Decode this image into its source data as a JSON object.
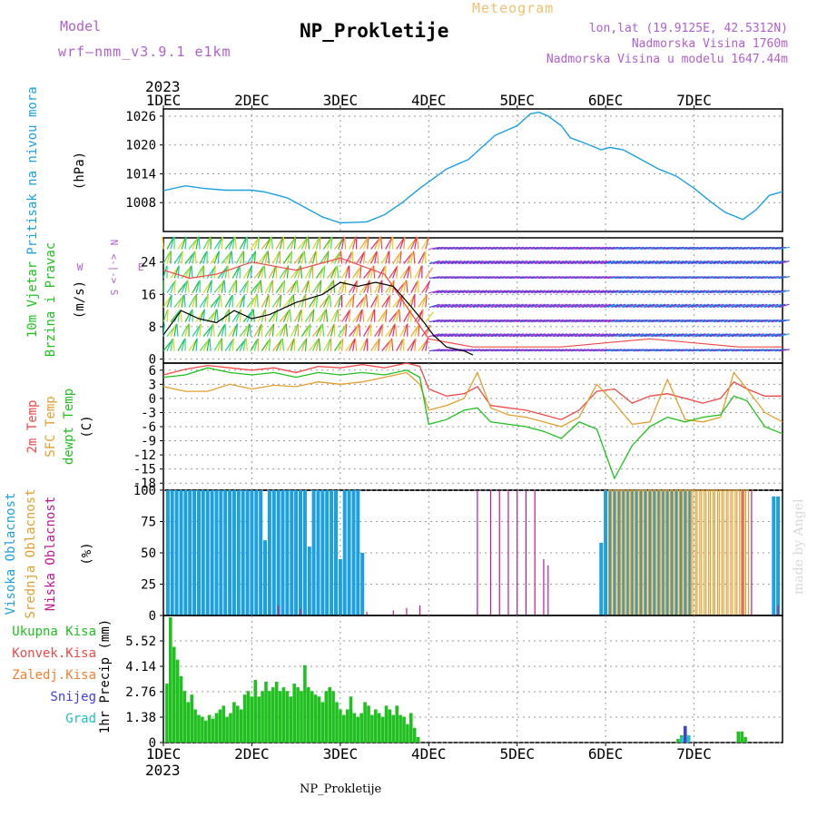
{
  "header": {
    "model_label": "Model",
    "model_name": "wrf—nmm_v3.9.1 e1km",
    "meteogram_label": "Meteogram",
    "station": "NP_Prokletije",
    "lonlat": "lon,lat (19.9125E, 42.5312N)",
    "altitude": "Nadmorska Visina 1760m",
    "model_altitude": "Nadmorska Visina u modelu 1647.44m"
  },
  "footer": {
    "station": "NP_Prokletije",
    "credit": "made by Angel"
  },
  "colors": {
    "pressure": "#1ca0e0",
    "temp2m": "#f04848",
    "sfc": "#e0a030",
    "dewpt": "#20c020",
    "high_cloud": "#1ca0e0",
    "mid_cloud": "#e0a030",
    "low_cloud": "#c01890",
    "precip_total": "#20c020",
    "precip_conv": "#f04848",
    "precip_frz": "#f08030",
    "snow": "#4040e0",
    "hail": "#20c0c0",
    "wind_label": "#20c020"
  },
  "chart_data": [
    {
      "type": "line",
      "panel": "pressure",
      "year": "2023",
      "x_ticks": [
        "1DEC",
        "2DEC",
        "3DEC",
        "4DEC",
        "5DEC",
        "6DEC",
        "7DEC"
      ],
      "ylabel_title": "Pritisak na nivou mora",
      "ylabel_unit": "(hPa)",
      "y_ticks": [
        1008,
        1014,
        1020,
        1026
      ],
      "ylim": [
        1002,
        1027.5
      ],
      "series": [
        {
          "x": [
            0,
            0.25,
            0.45,
            0.7,
            0.9,
            1.0,
            1.15,
            1.4,
            1.6,
            1.8,
            2.0,
            2.3,
            2.5,
            2.7,
            2.9,
            3.05,
            3.2,
            3.45,
            3.6,
            3.75,
            4.0,
            4.15,
            4.25,
            4.35,
            4.5,
            4.6,
            4.75,
            4.95,
            5.05,
            5.2,
            5.4,
            5.6,
            5.8,
            6.0,
            6.2,
            6.35,
            6.55,
            6.7,
            6.85,
            7.0
          ],
          "values": [
            1010.5,
            1011.5,
            1011.0,
            1010.6,
            1010.6,
            1010.6,
            1010.2,
            1009.0,
            1007.0,
            1005.0,
            1003.8,
            1004.0,
            1005.5,
            1008.0,
            1011.0,
            1013.0,
            1015.0,
            1017.0,
            1019.5,
            1022.0,
            1024.0,
            1026.5,
            1026.8,
            1026.0,
            1024.0,
            1021.5,
            1020.5,
            1019.0,
            1019.5,
            1019.0,
            1017.0,
            1015.0,
            1013.5,
            1011.0,
            1008.0,
            1006.0,
            1004.5,
            1006.5,
            1009.5,
            1010.3
          ]
        }
      ]
    },
    {
      "type": "line",
      "panel": "wind",
      "x_ticks": [
        "1DEC",
        "2DEC",
        "3DEC",
        "4DEC",
        "5DEC",
        "6DEC",
        "7DEC"
      ],
      "ylabel_title": "10m Vjetar",
      "ylabel_title2": "Brzina i Pravac",
      "ylabel_unit": "(m/s)",
      "compass": {
        "north": "N",
        "south": "S",
        "east": "E",
        "west": "W",
        "arrows": "<-|->"
      },
      "y_ticks": [
        0,
        8,
        16,
        24
      ],
      "ylim": [
        -1,
        30
      ],
      "series": [
        {
          "x": [
            0,
            0.2,
            0.4,
            0.6,
            0.8,
            1.0,
            1.2,
            1.5,
            1.8,
            2.0,
            2.2,
            2.4,
            2.6,
            2.8,
            2.95,
            3.05,
            3.2,
            3.4,
            3.5
          ],
          "values": [
            6,
            12,
            10,
            9,
            12,
            10,
            11,
            14,
            16,
            19,
            18,
            19,
            18,
            13,
            9,
            6,
            3,
            2,
            1
          ],
          "role": "speed"
        },
        {
          "x": [
            0,
            0.3,
            0.6,
            1.0,
            1.5,
            2.0,
            2.5,
            3.0,
            3.5,
            4.0,
            4.5,
            5.0,
            5.5,
            6.0,
            6.5,
            7.0
          ],
          "values": [
            22,
            20,
            21,
            24,
            22,
            25,
            21,
            5,
            3,
            3,
            3,
            4,
            5,
            4,
            3,
            3
          ],
          "role": "gust"
        }
      ]
    },
    {
      "type": "line",
      "panel": "temperature",
      "x_ticks": [
        "1DEC",
        "2DEC",
        "3DEC",
        "4DEC",
        "5DEC",
        "6DEC",
        "7DEC"
      ],
      "ylabel_title": "2m Temp",
      "ylabel_title2": "SFC Temp",
      "ylabel_title3": "dewpt Temp",
      "ylabel_unit": "(C)",
      "y_ticks": [
        6,
        3,
        0,
        -3,
        -6,
        -9,
        -12,
        -15,
        -18
      ],
      "ylim": [
        -19.5,
        7.5
      ],
      "x": [
        0,
        0.25,
        0.5,
        0.75,
        1.0,
        1.25,
        1.5,
        1.75,
        2.0,
        2.25,
        2.5,
        2.75,
        2.9,
        3.0,
        3.2,
        3.4,
        3.55,
        3.7,
        3.9,
        4.1,
        4.3,
        4.5,
        4.7,
        4.9,
        5.1,
        5.3,
        5.5,
        5.7,
        5.9,
        6.1,
        6.3,
        6.45,
        6.6,
        6.8,
        7.0
      ],
      "series": [
        {
          "name": "2m Temp",
          "values": [
            5.0,
            6.2,
            7.0,
            6.5,
            6.0,
            6.5,
            5.5,
            6.8,
            6.5,
            7.2,
            6.5,
            7.5,
            6.8,
            2.0,
            0.5,
            1.0,
            2.5,
            -1.5,
            -2.0,
            -2.5,
            -3.5,
            -4.5,
            -2.5,
            1.5,
            2.0,
            -1.0,
            0.5,
            1.0,
            0.0,
            -1.0,
            0.0,
            3.5,
            2.0,
            0.5,
            0.5
          ]
        },
        {
          "name": "SFC Temp",
          "values": [
            2.5,
            1.5,
            1.5,
            3.0,
            2.0,
            2.8,
            2.5,
            3.5,
            3.0,
            3.5,
            4.5,
            5.5,
            3.0,
            -2.5,
            -1.5,
            0.0,
            5.5,
            -2.0,
            -3.5,
            -4.0,
            -5.0,
            -6.0,
            -4.0,
            3.0,
            -1.0,
            -5.5,
            -5.0,
            4.0,
            -4.5,
            -5.0,
            -4.0,
            5.5,
            2.0,
            -3.0,
            -5.0
          ]
        },
        {
          "name": "dewpt Temp",
          "values": [
            4.5,
            5.0,
            6.5,
            5.5,
            5.0,
            5.5,
            4.5,
            5.5,
            5.0,
            5.5,
            5.0,
            6.0,
            4.5,
            -5.5,
            -4.5,
            -2.5,
            -2.0,
            -5.0,
            -5.5,
            -6.0,
            -7.0,
            -8.5,
            -5.0,
            -6.5,
            -17.0,
            -10.0,
            -6.0,
            -4.0,
            -5.0,
            -4.0,
            -3.5,
            0.5,
            -0.5,
            -6.0,
            -7.5
          ]
        }
      ]
    },
    {
      "type": "bar",
      "panel": "cloud",
      "x_ticks": [
        "1DEC",
        "2DEC",
        "3DEC",
        "4DEC",
        "5DEC",
        "6DEC",
        "7DEC"
      ],
      "ylabel_title": "Visoka Oblacnost",
      "ylabel_title2": "Srednja Oblacnost",
      "ylabel_title3": "Niska Oblacnost",
      "ylabel_unit": "(%)",
      "y_ticks": [
        0,
        25,
        50,
        75,
        100
      ],
      "ylim": [
        0,
        100
      ],
      "series": [
        {
          "name": "Visoka Oblacnost",
          "x": [
            0.05,
            0.1,
            0.15,
            0.2,
            0.25,
            0.3,
            0.35,
            0.4,
            0.45,
            0.5,
            0.55,
            0.6,
            0.65,
            0.7,
            0.75,
            0.8,
            0.85,
            0.9,
            0.95,
            1.0,
            1.05,
            1.1,
            1.15,
            1.2,
            1.25,
            1.3,
            1.35,
            1.4,
            1.45,
            1.5,
            1.55,
            1.6,
            1.65,
            1.7,
            1.75,
            1.8,
            1.85,
            1.9,
            1.95,
            2.0,
            2.05,
            2.1,
            2.15,
            2.2,
            2.25,
            2.3,
            2.35,
            2.4,
            2.45,
            2.5,
            2.55,
            4.95,
            5.0,
            5.05,
            5.1,
            5.15,
            5.2,
            5.25,
            5.3,
            5.35,
            5.4,
            5.45,
            5.5,
            5.55,
            5.6,
            5.65,
            5.7,
            5.75,
            5.8,
            5.85,
            5.9,
            5.95,
            6.9,
            6.95
          ],
          "values": [
            100,
            100,
            100,
            100,
            100,
            100,
            100,
            100,
            100,
            100,
            100,
            100,
            100,
            100,
            100,
            100,
            100,
            100,
            100,
            100,
            100,
            100,
            60,
            100,
            100,
            100,
            100,
            100,
            100,
            100,
            100,
            100,
            55,
            100,
            100,
            100,
            100,
            100,
            100,
            45,
            100,
            100,
            100,
            100,
            50,
            0,
            0,
            0,
            0,
            0,
            0,
            58,
            100,
            100,
            100,
            100,
            100,
            100,
            100,
            100,
            100,
            100,
            100,
            100,
            100,
            100,
            100,
            100,
            100,
            100,
            100,
            100,
            95,
            95
          ]
        },
        {
          "name": "Srednja Oblacnost",
          "x": [
            5.05,
            5.1,
            5.15,
            5.2,
            5.25,
            5.3,
            5.35,
            5.4,
            5.45,
            5.5,
            5.55,
            5.6,
            5.65,
            5.7,
            5.75,
            5.8,
            5.85,
            5.9,
            5.95,
            6.0,
            6.05,
            6.1,
            6.15,
            6.2,
            6.25,
            6.3,
            6.35,
            6.4,
            6.45,
            6.5,
            6.55,
            6.6
          ],
          "values": [
            100,
            100,
            100,
            100,
            100,
            100,
            100,
            100,
            100,
            100,
            100,
            100,
            100,
            100,
            100,
            100,
            100,
            100,
            100,
            100,
            100,
            100,
            100,
            100,
            100,
            100,
            100,
            100,
            100,
            100,
            100,
            100
          ]
        },
        {
          "name": "Niska Oblacnost",
          "x": [
            3.55,
            3.7,
            3.8,
            3.9,
            4.0,
            4.1,
            4.2,
            4.3,
            4.35,
            1.3,
            1.55,
            2.3,
            2.6,
            2.75,
            2.9,
            6.55,
            6.65,
            6.95
          ],
          "values": [
            100,
            100,
            100,
            100,
            100,
            100,
            100,
            45,
            40,
            8,
            5,
            3,
            4,
            6,
            8,
            100,
            100,
            8
          ]
        }
      ]
    },
    {
      "type": "bar",
      "panel": "precipitation",
      "year": "2023",
      "x_ticks": [
        "1DEC",
        "2DEC",
        "3DEC",
        "4DEC",
        "5DEC",
        "6DEC",
        "7DEC"
      ],
      "ylabel_titles": [
        "Ukupna Kisa",
        "Konvek.Kisa",
        "Zaledj.Kisa",
        "Snijeg",
        "Grad"
      ],
      "ylabel_unit": "1hr Precip (mm)",
      "y_ticks": [
        0,
        1.38,
        2.76,
        4.14,
        5.52
      ],
      "ylim": [
        0,
        6.9
      ],
      "series": [
        {
          "name": "Ukupna Kisa",
          "x": [
            0.04,
            0.08,
            0.12,
            0.16,
            0.2,
            0.24,
            0.28,
            0.32,
            0.36,
            0.4,
            0.44,
            0.48,
            0.52,
            0.56,
            0.6,
            0.64,
            0.68,
            0.72,
            0.76,
            0.8,
            0.84,
            0.88,
            0.92,
            0.96,
            1.0,
            1.04,
            1.08,
            1.12,
            1.16,
            1.2,
            1.24,
            1.28,
            1.32,
            1.36,
            1.4,
            1.44,
            1.48,
            1.52,
            1.56,
            1.6,
            1.64,
            1.68,
            1.72,
            1.76,
            1.8,
            1.84,
            1.88,
            1.92,
            1.96,
            2.0,
            2.04,
            2.08,
            2.12,
            2.16,
            2.2,
            2.24,
            2.28,
            2.32,
            2.36,
            2.4,
            2.44,
            2.48,
            2.52,
            2.56,
            2.6,
            2.64,
            2.68,
            2.72,
            2.76,
            2.8,
            2.84,
            2.88,
            5.82,
            5.86,
            5.9,
            5.94,
            6.5,
            6.54,
            6.58
          ],
          "values": [
            3.2,
            6.8,
            5.2,
            4.5,
            3.6,
            2.8,
            2.2,
            2.6,
            1.8,
            1.5,
            1.4,
            1.2,
            1.5,
            1.3,
            1.6,
            1.8,
            2.0,
            1.4,
            1.6,
            2.2,
            2.0,
            1.8,
            2.6,
            2.8,
            2.5,
            3.4,
            2.5,
            2.8,
            3.3,
            2.8,
            3.0,
            3.3,
            2.8,
            3.0,
            2.8,
            2.5,
            3.2,
            3.0,
            2.8,
            4.2,
            3.0,
            2.8,
            2.6,
            2.5,
            2.2,
            2.8,
            3.0,
            2.8,
            2.2,
            1.8,
            1.5,
            1.8,
            2.5,
            1.6,
            1.4,
            1.6,
            2.2,
            2.0,
            1.5,
            1.8,
            1.6,
            1.4,
            2.0,
            1.8,
            1.5,
            2.0,
            1.5,
            1.4,
            1.0,
            1.6,
            0.8,
            0.3,
            0.2,
            0.4,
            0.6,
            0.3,
            0.6,
            0.6,
            0.3
          ]
        },
        {
          "name": "Snijeg",
          "x": [
            5.9
          ],
          "values": [
            0.9
          ]
        },
        {
          "name": "Grad",
          "x": [
            5.86,
            5.94
          ],
          "values": [
            0.3,
            0.4
          ]
        }
      ]
    }
  ]
}
